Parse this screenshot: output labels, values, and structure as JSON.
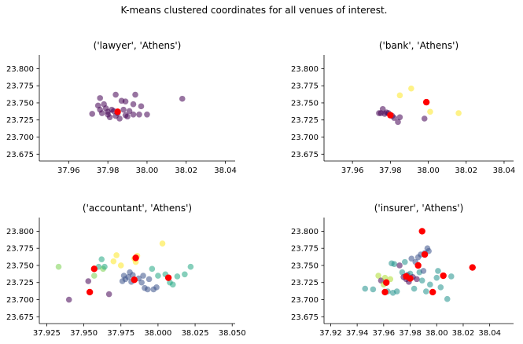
{
  "figure": {
    "suptitle": "K-means clustered coordinates for all venues of interest."
  },
  "chart_data": [
    {
      "type": "scatter",
      "title": "('lawyer', 'Athens')",
      "xlim": [
        37.945,
        38.045
      ],
      "ylim": [
        23.665,
        23.82
      ],
      "xticks": [
        "37.96",
        "37.98",
        "38.00",
        "38.02",
        "38.04"
      ],
      "yticks": [
        "23.675",
        "23.700",
        "23.725",
        "23.750",
        "23.775",
        "23.800"
      ],
      "points": [
        {
          "x": 37.972,
          "y": 23.734,
          "c": "#440154"
        },
        {
          "x": 37.975,
          "y": 23.746,
          "c": "#440154"
        },
        {
          "x": 37.976,
          "y": 23.757,
          "c": "#440154"
        },
        {
          "x": 37.976,
          "y": 23.74,
          "c": "#440154"
        },
        {
          "x": 37.977,
          "y": 23.735,
          "c": "#440154"
        },
        {
          "x": 37.978,
          "y": 23.748,
          "c": "#440154"
        },
        {
          "x": 37.979,
          "y": 23.742,
          "c": "#440154"
        },
        {
          "x": 37.98,
          "y": 23.737,
          "c": "#440154"
        },
        {
          "x": 37.98,
          "y": 23.733,
          "c": "#440154"
        },
        {
          "x": 37.981,
          "y": 23.729,
          "c": "#440154"
        },
        {
          "x": 37.982,
          "y": 23.74,
          "c": "#440154"
        },
        {
          "x": 37.983,
          "y": 23.738,
          "c": "#440154"
        },
        {
          "x": 37.984,
          "y": 23.731,
          "c": "#440154"
        },
        {
          "x": 37.984,
          "y": 23.762,
          "c": "#440154"
        },
        {
          "x": 37.985,
          "y": 23.735,
          "c": "#440154"
        },
        {
          "x": 37.986,
          "y": 23.727,
          "c": "#440154"
        },
        {
          "x": 37.987,
          "y": 23.753,
          "c": "#440154"
        },
        {
          "x": 37.988,
          "y": 23.74,
          "c": "#440154"
        },
        {
          "x": 37.989,
          "y": 23.732,
          "c": "#440154"
        },
        {
          "x": 37.989,
          "y": 23.752,
          "c": "#440154"
        },
        {
          "x": 37.99,
          "y": 23.73,
          "c": "#440154"
        },
        {
          "x": 37.991,
          "y": 23.738,
          "c": "#440154"
        },
        {
          "x": 37.993,
          "y": 23.748,
          "c": "#440154"
        },
        {
          "x": 37.994,
          "y": 23.762,
          "c": "#440154"
        },
        {
          "x": 37.993,
          "y": 23.733,
          "c": "#440154"
        },
        {
          "x": 37.996,
          "y": 23.733,
          "c": "#440154"
        },
        {
          "x": 37.997,
          "y": 23.745,
          "c": "#440154"
        },
        {
          "x": 38.0,
          "y": 23.733,
          "c": "#440154"
        },
        {
          "x": 38.018,
          "y": 23.756,
          "c": "#440154"
        }
      ],
      "centers": [
        {
          "x": 37.985,
          "y": 23.737,
          "c": "#ff0000"
        }
      ]
    },
    {
      "type": "scatter",
      "title": "('bank', 'Athens')",
      "xlim": [
        37.945,
        38.045
      ],
      "ylim": [
        23.665,
        23.82
      ],
      "xticks": [
        "37.96",
        "37.98",
        "38.00",
        "38.02",
        "38.04"
      ],
      "yticks": [
        "23.675",
        "23.700",
        "23.725",
        "23.750",
        "23.775",
        "23.800"
      ],
      "points": [
        {
          "x": 37.974,
          "y": 23.735,
          "c": "#440154"
        },
        {
          "x": 37.975,
          "y": 23.735,
          "c": "#440154"
        },
        {
          "x": 37.976,
          "y": 23.741,
          "c": "#440154"
        },
        {
          "x": 37.977,
          "y": 23.734,
          "c": "#440154"
        },
        {
          "x": 37.978,
          "y": 23.736,
          "c": "#440154"
        },
        {
          "x": 37.979,
          "y": 23.735,
          "c": "#440154"
        },
        {
          "x": 37.98,
          "y": 23.732,
          "c": "#440154"
        },
        {
          "x": 37.981,
          "y": 23.731,
          "c": "#440154"
        },
        {
          "x": 37.982,
          "y": 23.728,
          "c": "#440154"
        },
        {
          "x": 37.984,
          "y": 23.722,
          "c": "#440154"
        },
        {
          "x": 37.985,
          "y": 23.729,
          "c": "#440154"
        },
        {
          "x": 37.998,
          "y": 23.727,
          "c": "#440154"
        },
        {
          "x": 37.985,
          "y": 23.761,
          "c": "#fde725"
        },
        {
          "x": 37.991,
          "y": 23.771,
          "c": "#fde725"
        },
        {
          "x": 38.001,
          "y": 23.737,
          "c": "#fde725"
        },
        {
          "x": 38.016,
          "y": 23.735,
          "c": "#fde725"
        }
      ],
      "centers": [
        {
          "x": 37.98,
          "y": 23.732,
          "c": "#ff0000"
        },
        {
          "x": 37.999,
          "y": 23.751,
          "c": "#ff0000"
        }
      ]
    },
    {
      "type": "scatter",
      "title": "('accountant', 'Athens')",
      "xlim": [
        37.92,
        38.052
      ],
      "ylim": [
        23.665,
        23.82
      ],
      "xticks": [
        "37.925",
        "37.950",
        "37.975",
        "38.000",
        "38.025",
        "38.050"
      ],
      "yticks": [
        "23.675",
        "23.700",
        "23.725",
        "23.750",
        "23.775",
        "23.800"
      ],
      "points": [
        {
          "x": 37.933,
          "y": 23.748,
          "c": "#7ad151"
        },
        {
          "x": 37.94,
          "y": 23.7,
          "c": "#440154"
        },
        {
          "x": 37.953,
          "y": 23.727,
          "c": "#440154"
        },
        {
          "x": 37.957,
          "y": 23.735,
          "c": "#7ad151"
        },
        {
          "x": 37.96,
          "y": 23.748,
          "c": "#22a884"
        },
        {
          "x": 37.962,
          "y": 23.759,
          "c": "#22a884"
        },
        {
          "x": 37.963,
          "y": 23.745,
          "c": "#7ad151"
        },
        {
          "x": 37.964,
          "y": 23.748,
          "c": "#22a884"
        },
        {
          "x": 37.967,
          "y": 23.708,
          "c": "#440154"
        },
        {
          "x": 37.97,
          "y": 23.756,
          "c": "#fde725"
        },
        {
          "x": 37.972,
          "y": 23.765,
          "c": "#fde725"
        },
        {
          "x": 37.975,
          "y": 23.75,
          "c": "#fde725"
        },
        {
          "x": 37.976,
          "y": 23.727,
          "c": "#3b528b"
        },
        {
          "x": 37.977,
          "y": 23.735,
          "c": "#3b528b"
        },
        {
          "x": 37.978,
          "y": 23.73,
          "c": "#3b528b"
        },
        {
          "x": 37.98,
          "y": 23.733,
          "c": "#3b528b"
        },
        {
          "x": 37.981,
          "y": 23.74,
          "c": "#3b528b"
        },
        {
          "x": 37.982,
          "y": 23.726,
          "c": "#3b528b"
        },
        {
          "x": 37.983,
          "y": 23.736,
          "c": "#3b528b"
        },
        {
          "x": 37.984,
          "y": 23.76,
          "c": "#fde725"
        },
        {
          "x": 37.985,
          "y": 23.755,
          "c": "#fde725"
        },
        {
          "x": 37.986,
          "y": 23.764,
          "c": "#fde725"
        },
        {
          "x": 37.987,
          "y": 23.731,
          "c": "#3b528b"
        },
        {
          "x": 37.989,
          "y": 23.725,
          "c": "#3b528b"
        },
        {
          "x": 37.99,
          "y": 23.735,
          "c": "#3b528b"
        },
        {
          "x": 37.991,
          "y": 23.717,
          "c": "#3b528b"
        },
        {
          "x": 37.993,
          "y": 23.715,
          "c": "#3b528b"
        },
        {
          "x": 37.994,
          "y": 23.73,
          "c": "#3b528b"
        },
        {
          "x": 37.996,
          "y": 23.745,
          "c": "#22a884"
        },
        {
          "x": 37.997,
          "y": 23.715,
          "c": "#3b528b"
        },
        {
          "x": 37.999,
          "y": 23.718,
          "c": "#3b528b"
        },
        {
          "x": 38.0,
          "y": 23.735,
          "c": "#22a884"
        },
        {
          "x": 38.003,
          "y": 23.782,
          "c": "#fde725"
        },
        {
          "x": 38.005,
          "y": 23.737,
          "c": "#22a884"
        },
        {
          "x": 38.008,
          "y": 23.725,
          "c": "#22a884"
        },
        {
          "x": 38.01,
          "y": 23.722,
          "c": "#22a884"
        },
        {
          "x": 38.013,
          "y": 23.734,
          "c": "#22a884"
        },
        {
          "x": 38.018,
          "y": 23.737,
          "c": "#22a884"
        },
        {
          "x": 38.022,
          "y": 23.748,
          "c": "#22a884"
        }
      ],
      "centers": [
        {
          "x": 37.954,
          "y": 23.711,
          "c": "#ff0000"
        },
        {
          "x": 37.957,
          "y": 23.745,
          "c": "#ff0000"
        },
        {
          "x": 37.985,
          "y": 23.761,
          "c": "#ff0000"
        },
        {
          "x": 37.984,
          "y": 23.729,
          "c": "#ff0000"
        },
        {
          "x": 38.007,
          "y": 23.732,
          "c": "#ff0000"
        }
      ]
    },
    {
      "type": "scatter",
      "title": "('insurer', 'Athens')",
      "xlim": [
        37.915,
        38.058
      ],
      "ylim": [
        23.665,
        23.82
      ],
      "xticks": [
        "37.92",
        "37.94",
        "37.96",
        "37.98",
        "38.00",
        "38.02",
        "38.04"
      ],
      "yticks": [
        "23.675",
        "23.700",
        "23.725",
        "23.750",
        "23.775",
        "23.800"
      ],
      "points": [
        {
          "x": 37.946,
          "y": 23.716,
          "c": "#21918c"
        },
        {
          "x": 37.952,
          "y": 23.715,
          "c": "#21918c"
        },
        {
          "x": 37.956,
          "y": 23.735,
          "c": "#addc30"
        },
        {
          "x": 37.958,
          "y": 23.728,
          "c": "#440154"
        },
        {
          "x": 37.96,
          "y": 23.722,
          "c": "#addc30"
        },
        {
          "x": 37.961,
          "y": 23.732,
          "c": "#addc30"
        },
        {
          "x": 37.963,
          "y": 23.712,
          "c": "#21918c"
        },
        {
          "x": 37.965,
          "y": 23.73,
          "c": "#addc30"
        },
        {
          "x": 37.966,
          "y": 23.753,
          "c": "#21918c"
        },
        {
          "x": 37.967,
          "y": 23.71,
          "c": "#21918c"
        },
        {
          "x": 37.968,
          "y": 23.752,
          "c": "#21918c"
        },
        {
          "x": 37.97,
          "y": 23.712,
          "c": "#21918c"
        },
        {
          "x": 37.972,
          "y": 23.75,
          "c": "#440154"
        },
        {
          "x": 37.974,
          "y": 23.74,
          "c": "#21918c"
        },
        {
          "x": 37.975,
          "y": 23.733,
          "c": "#440154"
        },
        {
          "x": 37.976,
          "y": 23.755,
          "c": "#21918c"
        },
        {
          "x": 37.977,
          "y": 23.73,
          "c": "#440154"
        },
        {
          "x": 37.978,
          "y": 23.736,
          "c": "#440154"
        },
        {
          "x": 37.979,
          "y": 23.726,
          "c": "#440154"
        },
        {
          "x": 37.98,
          "y": 23.738,
          "c": "#21918c"
        },
        {
          "x": 37.981,
          "y": 23.76,
          "c": "#3b528b"
        },
        {
          "x": 37.982,
          "y": 23.733,
          "c": "#440154"
        },
        {
          "x": 37.983,
          "y": 23.716,
          "c": "#21918c"
        },
        {
          "x": 37.984,
          "y": 23.755,
          "c": "#3b528b"
        },
        {
          "x": 37.985,
          "y": 23.73,
          "c": "#440154"
        },
        {
          "x": 37.986,
          "y": 23.762,
          "c": "#3b528b"
        },
        {
          "x": 37.987,
          "y": 23.74,
          "c": "#21918c"
        },
        {
          "x": 37.988,
          "y": 23.766,
          "c": "#3b528b"
        },
        {
          "x": 37.989,
          "y": 23.728,
          "c": "#21918c"
        },
        {
          "x": 37.99,
          "y": 23.742,
          "c": "#3b528b"
        },
        {
          "x": 37.991,
          "y": 23.768,
          "c": "#3b528b"
        },
        {
          "x": 37.992,
          "y": 23.712,
          "c": "#21918c"
        },
        {
          "x": 37.993,
          "y": 23.775,
          "c": "#3b528b"
        },
        {
          "x": 37.994,
          "y": 23.771,
          "c": "#3b528b"
        },
        {
          "x": 37.995,
          "y": 23.722,
          "c": "#21918c"
        },
        {
          "x": 38.0,
          "y": 23.732,
          "c": "#21918c"
        },
        {
          "x": 38.001,
          "y": 23.742,
          "c": "#21918c"
        },
        {
          "x": 38.003,
          "y": 23.718,
          "c": "#21918c"
        },
        {
          "x": 38.008,
          "y": 23.701,
          "c": "#21918c"
        },
        {
          "x": 38.011,
          "y": 23.734,
          "c": "#21918c"
        }
      ],
      "centers": [
        {
          "x": 37.961,
          "y": 23.711,
          "c": "#ff0000"
        },
        {
          "x": 37.962,
          "y": 23.725,
          "c": "#ff0000"
        },
        {
          "x": 37.977,
          "y": 23.734,
          "c": "#ff0000"
        },
        {
          "x": 37.98,
          "y": 23.731,
          "c": "#ff0000"
        },
        {
          "x": 37.986,
          "y": 23.75,
          "c": "#ff0000"
        },
        {
          "x": 37.989,
          "y": 23.8,
          "c": "#ff0000"
        },
        {
          "x": 37.991,
          "y": 23.766,
          "c": "#ff0000"
        },
        {
          "x": 37.997,
          "y": 23.711,
          "c": "#ff0000"
        },
        {
          "x": 38.005,
          "y": 23.735,
          "c": "#ff0000"
        },
        {
          "x": 38.027,
          "y": 23.747,
          "c": "#ff0000"
        }
      ]
    }
  ]
}
